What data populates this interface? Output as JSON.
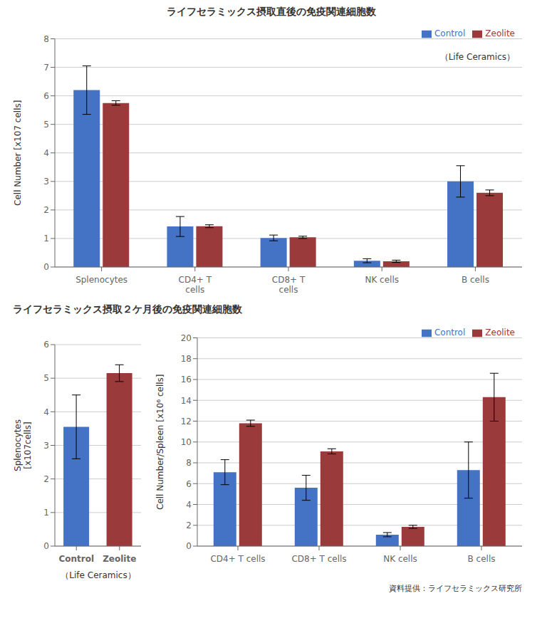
{
  "chart_data": [
    {
      "type": "bar",
      "title": "ライフセラミックス摂取直後の免疫関連細胞数",
      "categories": [
        "Splenocytes",
        "CD4+ T\ncells",
        "CD8+ T\ncells",
        "NK cells",
        "B cells"
      ],
      "series": [
        {
          "name": "Control",
          "color": "#4472C4",
          "values": [
            6.2,
            1.42,
            1.02,
            0.22,
            3.0
          ],
          "errors": [
            0.85,
            0.35,
            0.1,
            0.07,
            0.55
          ]
        },
        {
          "name": "Zeolite",
          "color": "#9B3A3A",
          "values": [
            5.75,
            1.43,
            1.04,
            0.2,
            2.6
          ],
          "errors": [
            0.08,
            0.05,
            0.04,
            0.04,
            0.1
          ]
        }
      ],
      "y_label": "Cell Number [x107 cells]",
      "ylim": [
        0,
        8
      ],
      "yticks": [
        0,
        1,
        2,
        3,
        4,
        5,
        6,
        7,
        8
      ],
      "grid": true,
      "legend": "upper right",
      "annotations": [
        "（Life Ceramics）"
      ]
    },
    {
      "type": "bar",
      "title": "ライフセラミックス摂取２ケ月後の免疫関連細胞数",
      "categories": [
        "Control",
        "Zeolite"
      ],
      "values": [
        3.55,
        5.15
      ],
      "errors": [
        0.95,
        0.25
      ],
      "colors": [
        "#4472C4",
        "#9B3A3A"
      ],
      "y_label": "Splenocytes\n[x107cells]",
      "ylim": [
        0,
        6
      ],
      "yticks": [
        0,
        1,
        2,
        3,
        4,
        5,
        6
      ],
      "grid": true,
      "annotations": [
        "（Life Ceramics）"
      ]
    },
    {
      "type": "bar",
      "categories": [
        "CD4+ T cells",
        "CD8+ T cells",
        "NK cells",
        "B cells"
      ],
      "series": [
        {
          "name": "Control",
          "color": "#4472C4",
          "values": [
            7.1,
            5.6,
            1.1,
            7.3
          ],
          "errors": [
            1.2,
            1.2,
            0.2,
            2.7
          ]
        },
        {
          "name": "Zeolite",
          "color": "#9B3A3A",
          "values": [
            11.8,
            9.1,
            1.85,
            14.3
          ],
          "errors": [
            0.3,
            0.25,
            0.15,
            2.3
          ]
        }
      ],
      "y_label": "Cell Number/Spleen [x10⁶ cells]",
      "ylim": [
        0,
        20
      ],
      "yticks": [
        0,
        2,
        4,
        6,
        8,
        10,
        12,
        14,
        16,
        18,
        20
      ],
      "grid": true,
      "legend": "upper right",
      "annotations": [
        "資料提供：ライフセラミックス研究所"
      ]
    }
  ]
}
